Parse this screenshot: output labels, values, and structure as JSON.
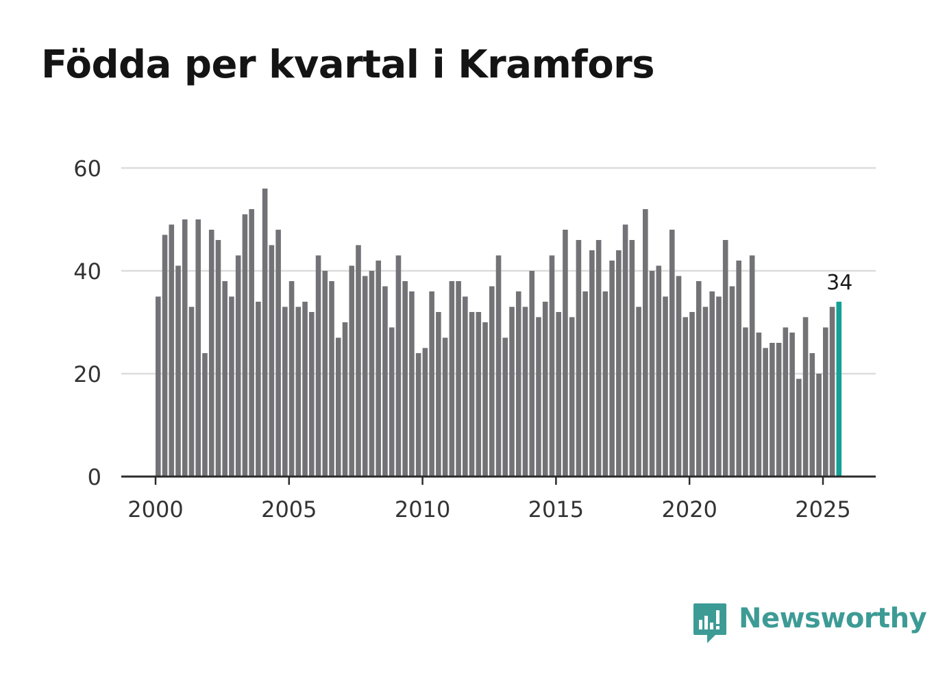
{
  "title": "Födda per kvartal i Kramfors",
  "brand": {
    "name": "Newsworthy",
    "icon": "newsworthy-logo-icon",
    "color": "#3d9b95"
  },
  "chart_data": {
    "type": "bar",
    "title": "Födda per kvartal i Kramfors",
    "xlabel": "",
    "ylabel": "",
    "ylim": [
      0,
      60
    ],
    "yticks": [
      0,
      20,
      40,
      60
    ],
    "xticks": [
      "2000",
      "2005",
      "2010",
      "2015",
      "2020",
      "2025"
    ],
    "start": {
      "year": 2000,
      "quarter": 1
    },
    "grid": true,
    "bar_color": "#737276",
    "highlight_color": "#14a096",
    "highlight_label": "34",
    "values": [
      35,
      47,
      49,
      41,
      50,
      33,
      50,
      24,
      48,
      46,
      38,
      35,
      43,
      51,
      52,
      34,
      56,
      45,
      48,
      33,
      38,
      33,
      34,
      32,
      43,
      40,
      38,
      27,
      30,
      41,
      45,
      39,
      40,
      42,
      37,
      29,
      43,
      38,
      36,
      24,
      25,
      36,
      32,
      27,
      38,
      38,
      35,
      32,
      32,
      30,
      37,
      43,
      27,
      33,
      36,
      33,
      40,
      31,
      34,
      43,
      32,
      48,
      31,
      46,
      36,
      44,
      46,
      36,
      42,
      44,
      49,
      46,
      33,
      52,
      40,
      41,
      35,
      48,
      39,
      31,
      32,
      38,
      33,
      36,
      35,
      46,
      37,
      42,
      29,
      43,
      28,
      25,
      26,
      26,
      29,
      28,
      19,
      31,
      24,
      20,
      29,
      33,
      34
    ]
  }
}
